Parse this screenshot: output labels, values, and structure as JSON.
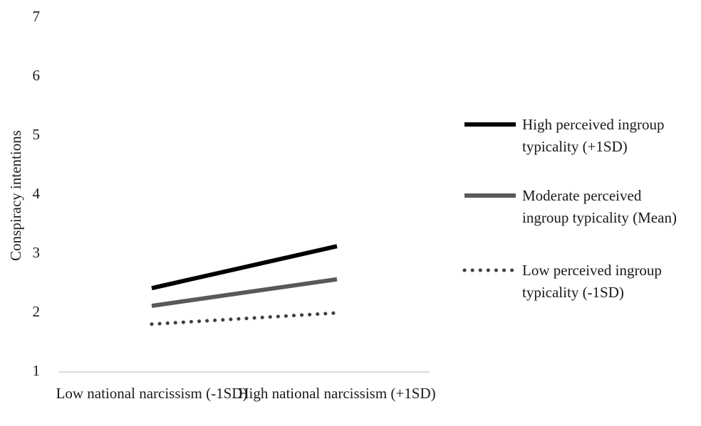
{
  "chart_data": {
    "type": "line",
    "y_label": "Conspiracy intentions",
    "categories": [
      "Low national narcissism (-1SD)",
      "High national narcissism (+1SD)"
    ],
    "series": [
      {
        "name": "High perceived ingroup typicality (+1SD)",
        "color": "#000000",
        "style": "solid",
        "values": [
          2.42,
          3.13
        ]
      },
      {
        "name": "Moderate perceived ingroup typicality (Mean)",
        "color": "#595959",
        "style": "solid",
        "values": [
          2.12,
          2.57
        ]
      },
      {
        "name": "Low perceived ingroup typicality (-1SD)",
        "color": "#404040",
        "style": "dotted",
        "values": [
          1.81,
          2.0
        ]
      }
    ],
    "ylim": [
      1,
      7
    ],
    "yticks": [
      1,
      2,
      3,
      4,
      5,
      6,
      7
    ],
    "grid": false,
    "legend": "right"
  }
}
